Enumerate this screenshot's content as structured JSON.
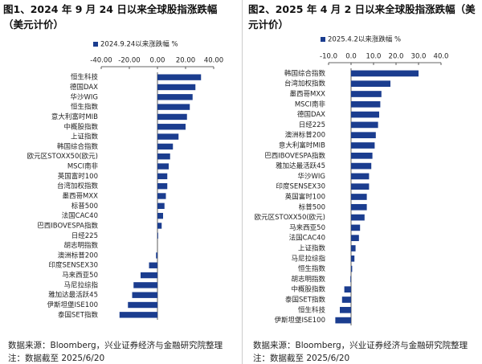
{
  "chart_data": [
    {
      "type": "bar",
      "orientation": "horizontal",
      "title": "图1、2024 年 9 月 24 日以来全球股指涨跌幅（美元计价）",
      "series": [
        {
          "name": "2024.9.24以来涨跌幅 %",
          "color": "#1b3d8f",
          "values": [
            31,
            27,
            25,
            23,
            21,
            20,
            15,
            11,
            9,
            8,
            7,
            7,
            6,
            5,
            4,
            3,
            0.5,
            0,
            -1,
            -6,
            -12,
            -17,
            -18,
            -21,
            -27
          ]
        }
      ],
      "categories": [
        "恒生科技",
        "德国DAX",
        "华沙WIG",
        "恒生指数",
        "意大利富时MIB",
        "中概股指数",
        "上证指数",
        "韩国综合指数",
        "欧元区STOXX50(欧元)",
        "MSCI南非",
        "英国富时100",
        "台湾加权指数",
        "墨西哥MXX",
        "标普500",
        "法国CAC40",
        "巴西IBOVESPA指数",
        "日经225",
        "胡志明指数",
        "澳洲标普200",
        "印度SENSEX30",
        "马来西亚50",
        "马尼拉综指",
        "雅加达最活跃45",
        "伊斯坦堡ISE100",
        "泰国SET指数"
      ],
      "xlim": [
        -40,
        40
      ],
      "xticks": [
        {
          "value": -40,
          "label": "-40.00"
        },
        {
          "value": -20,
          "label": "-20.00"
        },
        {
          "value": 0,
          "label": "0.00"
        },
        {
          "value": 20,
          "label": "20.00"
        },
        {
          "value": 40,
          "label": "40.00"
        }
      ],
      "source": "数据来源：Bloomberg，兴业证券经济与金融研究院整理",
      "note": "注：数据截至 2025/6/20"
    },
    {
      "type": "bar",
      "orientation": "horizontal",
      "title": "图2、2025 年 4 月 2 日以来全球股指涨跌幅（美元计价）",
      "series": [
        {
          "name": "2025.4.2以来涨跌幅 %",
          "color": "#1b3d8f",
          "values": [
            30,
            17.5,
            13.5,
            13,
            12.5,
            12,
            11,
            10.5,
            9.5,
            9,
            8,
            8,
            7,
            7,
            6,
            4,
            3.5,
            2,
            1.5,
            0.5,
            -0.3,
            -3,
            -4,
            -5,
            -7
          ]
        }
      ],
      "categories": [
        "韩国综合指数",
        "台湾加权指数",
        "墨西哥MXX",
        "MSCI南非",
        "德国DAX",
        "日经225",
        "澳洲标普200",
        "意大利富时MIB",
        "巴西IBOVESPA指数",
        "雅加达最活跃45",
        "华沙WIG",
        "印度SENSEX30",
        "英国富时100",
        "标普500",
        "欧元区STOXX50(欧元)",
        "马来西亚50",
        "法国CAC40",
        "上证指数",
        "马尼拉综指",
        "恒生指数",
        "胡志明指数",
        "中概股指数",
        "泰国SET指数",
        "恒生科技",
        "伊斯坦堡ISE100"
      ],
      "xlim": [
        -10,
        40
      ],
      "xticks": [
        {
          "value": -10,
          "label": "-10.0"
        },
        {
          "value": 0,
          "label": "0.0"
        },
        {
          "value": 10,
          "label": "10.0"
        },
        {
          "value": 20,
          "label": "20.0"
        },
        {
          "value": 30,
          "label": "30.0"
        },
        {
          "value": 40,
          "label": "40.0"
        }
      ],
      "source": "数据来源：Bloomberg，兴业证券经济与金融研究院整理",
      "note": "注：数据截至 2025/6/20"
    }
  ]
}
